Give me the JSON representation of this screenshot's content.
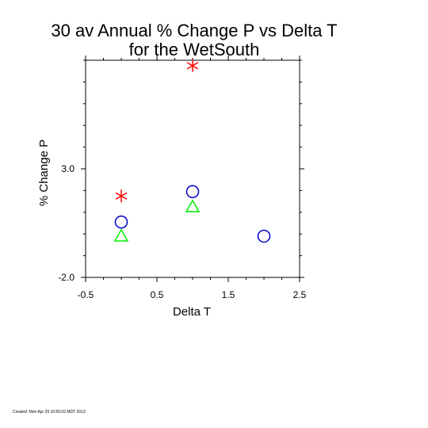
{
  "chart_data": {
    "type": "scatter",
    "title_line1": "30 av Annual % Change P vs Delta T",
    "title_line2": "for the WetSouth",
    "xlabel": "Delta T",
    "ylabel": "% Change P",
    "xlim": [
      -0.5,
      2.5
    ],
    "ylim": [
      -2.0,
      8.0
    ],
    "x_ticks": [
      -0.5,
      0.5,
      1.5,
      2.5
    ],
    "x_tick_labels": [
      "-0.5",
      "0.5",
      "1.5",
      "2.5"
    ],
    "y_ticks": [
      -2.0,
      3.0
    ],
    "y_tick_labels": [
      "-2.0",
      "3.0"
    ],
    "grid": false,
    "legend": "none",
    "series": [
      {
        "marker": "asterisk",
        "color": "#ff0000",
        "points": [
          [
            0.0,
            1.75
          ],
          [
            1.0,
            7.75
          ]
        ]
      },
      {
        "marker": "circle",
        "color": "#0000cc",
        "points": [
          [
            0.0,
            0.55
          ],
          [
            1.0,
            1.95
          ],
          [
            2.0,
            -0.1
          ]
        ]
      },
      {
        "marker": "triangle",
        "color": "#00ee00",
        "points": [
          [
            0.0,
            -0.1
          ],
          [
            1.0,
            1.25
          ]
        ]
      }
    ]
  },
  "footer": "Created: Mon Apr 29 10:55:03 MDT 2013"
}
